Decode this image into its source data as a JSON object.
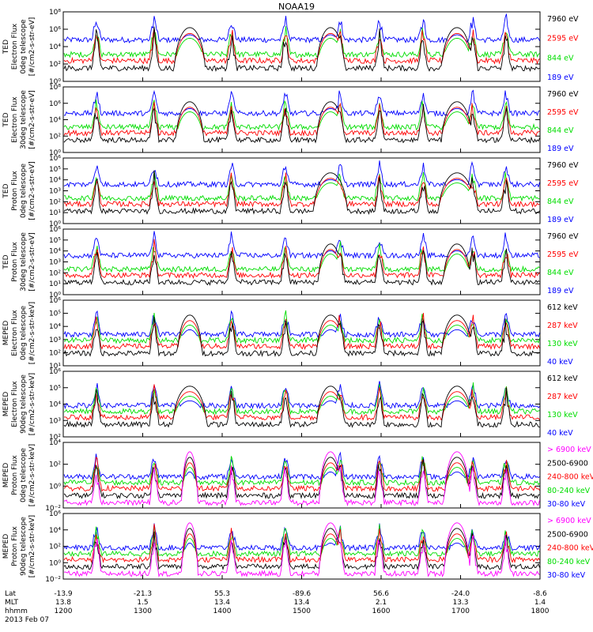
{
  "title": "NOAA19",
  "colors": {
    "black": "#000000",
    "red": "#ff0000",
    "green": "#00dd00",
    "blue": "#0000ff",
    "magenta": "#ff00ff"
  },
  "chart_data": [
    {
      "type": "line",
      "ylabel": [
        "TED",
        "Electron Flux",
        "0deg telescope",
        "[#/cm2-s-str-eV]"
      ],
      "yticks": [
        "10⁰",
        "10²",
        "10⁴",
        "10⁶",
        "10⁸"
      ],
      "ylim": [
        1,
        100000000.0
      ],
      "scale": "log",
      "series": [
        {
          "name": "7960 eV",
          "color": "#000000"
        },
        {
          "name": "2595 eV",
          "color": "#ff0000"
        },
        {
          "name": "844 eV",
          "color": "#00dd00"
        },
        {
          "name": "189 eV",
          "color": "#0000ff"
        }
      ]
    },
    {
      "type": "line",
      "ylabel": [
        "TED",
        "Electron Flux",
        "30deg telescope",
        "[#/cm2-s-str-eV]"
      ],
      "yticks": [
        "10⁰",
        "10²",
        "10⁴",
        "10⁶",
        "10⁸"
      ],
      "ylim": [
        1,
        100000000.0
      ],
      "scale": "log",
      "series": [
        {
          "name": "7960 eV",
          "color": "#000000"
        },
        {
          "name": "2595 eV",
          "color": "#ff0000"
        },
        {
          "name": "844 eV",
          "color": "#00dd00"
        },
        {
          "name": "189 eV",
          "color": "#0000ff"
        }
      ]
    },
    {
      "type": "line",
      "ylabel": [
        "TED",
        "Proton Flux",
        "0deg telescope",
        "[#/cm2-s-str-eV]"
      ],
      "yticks": [
        "10⁰",
        "10¹",
        "10²",
        "10³",
        "10⁴",
        "10⁵",
        "10⁶"
      ],
      "ylim": [
        1,
        1000000.0
      ],
      "scale": "log",
      "series": [
        {
          "name": "7960 eV",
          "color": "#000000"
        },
        {
          "name": "2595 eV",
          "color": "#ff0000"
        },
        {
          "name": "844 eV",
          "color": "#00dd00"
        },
        {
          "name": "189 eV",
          "color": "#0000ff"
        }
      ]
    },
    {
      "type": "line",
      "ylabel": [
        "TED",
        "Proton Flux",
        "30deg telescope",
        "[#/cm2-s-str-eV]"
      ],
      "yticks": [
        "10⁰",
        "10¹",
        "10²",
        "10³",
        "10⁴",
        "10⁵",
        "10⁶"
      ],
      "ylim": [
        1,
        1000000.0
      ],
      "scale": "log",
      "series": [
        {
          "name": "7960 eV",
          "color": "#000000"
        },
        {
          "name": "2595 eV",
          "color": "#ff0000"
        },
        {
          "name": "844 eV",
          "color": "#00dd00"
        },
        {
          "name": "189 eV",
          "color": "#0000ff"
        }
      ]
    },
    {
      "type": "line",
      "ylabel": [
        "MEPED",
        "Electron Flux",
        "0deg telescope",
        "[#/cm2-s-str-keV]"
      ],
      "yticks": [
        "10¹",
        "10²",
        "10³",
        "10⁴",
        "10⁵",
        "10⁶"
      ],
      "ylim": [
        10,
        1000000.0
      ],
      "scale": "log",
      "series": [
        {
          "name": "612 keV",
          "color": "#000000"
        },
        {
          "name": "287 keV",
          "color": "#ff0000"
        },
        {
          "name": "130 keV",
          "color": "#00dd00"
        },
        {
          "name": "40 keV",
          "color": "#0000ff"
        }
      ]
    },
    {
      "type": "line",
      "ylabel": [
        "MEPED",
        "Electron Flux",
        "90deg telescope",
        "[#/cm2-s-str-keV]"
      ],
      "yticks": [
        "10²",
        "10³",
        "10⁴",
        "10⁵",
        "10⁶"
      ],
      "ylim": [
        100,
        1000000.0
      ],
      "scale": "log",
      "series": [
        {
          "name": "612 keV",
          "color": "#000000"
        },
        {
          "name": "287 keV",
          "color": "#ff0000"
        },
        {
          "name": "130 keV",
          "color": "#00dd00"
        },
        {
          "name": "40 keV",
          "color": "#0000ff"
        }
      ]
    },
    {
      "type": "line",
      "ylabel": [
        "MEPED",
        "Proton Flux",
        "0deg telescope",
        "[#/cm2-s-str-keV]"
      ],
      "yticks": [
        "10⁻²",
        "10⁰",
        "10²",
        "10⁴"
      ],
      "ylim": [
        0.01,
        100000.0
      ],
      "scale": "log",
      "series": [
        {
          "name": "> 6900 keV",
          "color": "#ff00ff"
        },
        {
          "name": "2500-6900",
          "color": "#000000"
        },
        {
          "name": "240-800 keV",
          "color": "#ff0000"
        },
        {
          "name": "80-240 keV",
          "color": "#00dd00"
        },
        {
          "name": "30-80 keV",
          "color": "#0000ff"
        }
      ]
    },
    {
      "type": "line",
      "ylabel": [
        "MEPED",
        "Proton Flux",
        "90deg telescope",
        "[#/cm2-s-str-keV]"
      ],
      "yticks": [
        "10⁻²",
        "10⁰",
        "10²",
        "10⁴",
        "10⁶"
      ],
      "ylim": [
        0.01,
        1000000.0
      ],
      "scale": "log",
      "series": [
        {
          "name": "> 6900 keV",
          "color": "#ff00ff"
        },
        {
          "name": "2500-6900",
          "color": "#000000"
        },
        {
          "name": "240-800 keV",
          "color": "#ff0000"
        },
        {
          "name": "80-240 keV",
          "color": "#00dd00"
        },
        {
          "name": "30-80 keV",
          "color": "#0000ff"
        }
      ]
    }
  ],
  "xaxis": {
    "row_labels": [
      "Lat",
      "MLT",
      "hhmm"
    ],
    "lat": [
      "-13.9",
      "-21.3",
      "55.3",
      "-89.6",
      "56.6",
      "-24.0",
      "-8.6"
    ],
    "mlt": [
      "13.8",
      "1.5",
      "13.4",
      "13.4",
      "2.1",
      "13.3",
      "1.4"
    ],
    "hhmm": [
      "1200",
      "1300",
      "1400",
      "1500",
      "1600",
      "1700",
      "1800"
    ],
    "date": "2013 Feb 07"
  }
}
